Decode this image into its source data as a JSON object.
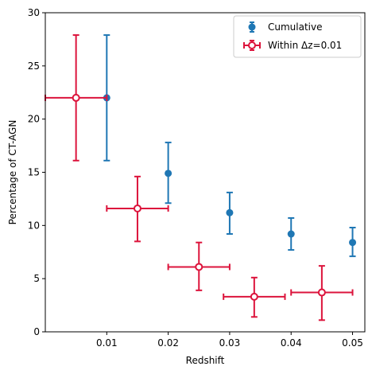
{
  "chart_data": {
    "type": "scatter",
    "xlabel": "Redshift",
    "ylabel": "Percentage of CT-AGN",
    "xlim": [
      0.0,
      0.052
    ],
    "ylim": [
      0,
      30
    ],
    "xticks": [
      0.01,
      0.02,
      0.03,
      0.04,
      0.05
    ],
    "xtick_labels": [
      "0.01",
      "0.02",
      "0.03",
      "0.04",
      "0.05"
    ],
    "yticks": [
      0,
      5,
      10,
      15,
      20,
      25,
      30
    ],
    "ytick_labels": [
      "0",
      "5",
      "10",
      "15",
      "20",
      "25",
      "30"
    ],
    "grid": false,
    "legend_position": "top-right",
    "series": [
      {
        "name": "Cumulative",
        "color": "#1f77b4",
        "marker": "filled-circle",
        "points": [
          {
            "x": 0.01,
            "y": 22.0,
            "y_low": 16.1,
            "y_high": 27.9
          },
          {
            "x": 0.02,
            "y": 14.9,
            "y_low": 12.1,
            "y_high": 17.8
          },
          {
            "x": 0.03,
            "y": 11.2,
            "y_low": 9.2,
            "y_high": 13.1
          },
          {
            "x": 0.04,
            "y": 9.2,
            "y_low": 7.7,
            "y_high": 10.7
          },
          {
            "x": 0.05,
            "y": 8.4,
            "y_low": 7.1,
            "y_high": 9.8
          }
        ]
      },
      {
        "name": "Within Δz=0.01",
        "color": "#dc143c",
        "marker": "open-circle",
        "points": [
          {
            "x": 0.005,
            "y": 22.0,
            "x_low": 0.0,
            "x_high": 0.01,
            "y_low": 16.1,
            "y_high": 27.9
          },
          {
            "x": 0.015,
            "y": 11.6,
            "x_low": 0.01,
            "x_high": 0.02,
            "y_low": 8.5,
            "y_high": 14.6
          },
          {
            "x": 0.025,
            "y": 6.1,
            "x_low": 0.02,
            "x_high": 0.03,
            "y_low": 3.9,
            "y_high": 8.4
          },
          {
            "x": 0.034,
            "y": 3.3,
            "x_low": 0.029,
            "x_high": 0.039,
            "y_low": 1.4,
            "y_high": 5.1
          },
          {
            "x": 0.045,
            "y": 3.7,
            "x_low": 0.04,
            "x_high": 0.05,
            "y_low": 1.1,
            "y_high": 6.2
          }
        ]
      }
    ]
  }
}
